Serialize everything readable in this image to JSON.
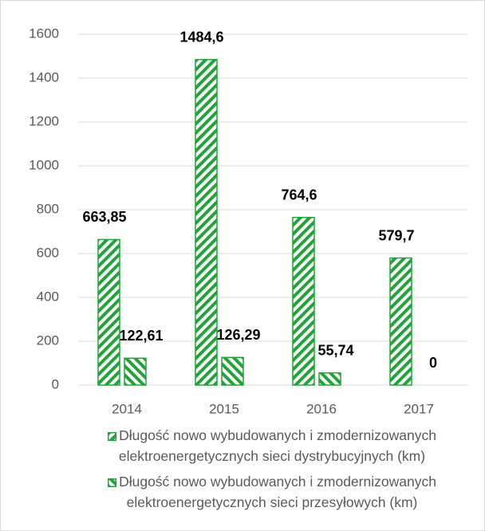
{
  "chart_data": {
    "type": "bar",
    "categories": [
      "2014",
      "2015",
      "2016",
      "2017"
    ],
    "series": [
      {
        "name": "Długość nowo wybudowanych i zmodernizowanych elektroenergetycznych sieci dystrybucyjnych (km)",
        "color": "#22a33a",
        "hatch": "forward",
        "values": [
          663.85,
          1484.6,
          764.6,
          579.7
        ],
        "value_labels": [
          "663,85",
          "1484,6",
          "764,6",
          "579,7"
        ]
      },
      {
        "name": "Długość nowo wybudowanych i zmodernizowanych elektroenergetycznych sieci przesyłowych (km)",
        "color": "#22a33a",
        "hatch": "backward",
        "values": [
          122.61,
          126.29,
          55.74,
          0
        ],
        "value_labels": [
          "122,61",
          "126,29",
          "55,74",
          "0"
        ]
      }
    ],
    "ylim": [
      0,
      1600
    ],
    "yticks": [
      0,
      200,
      400,
      600,
      800,
      1000,
      1200,
      1400,
      1600
    ],
    "grid": true,
    "legend": "bottom"
  }
}
